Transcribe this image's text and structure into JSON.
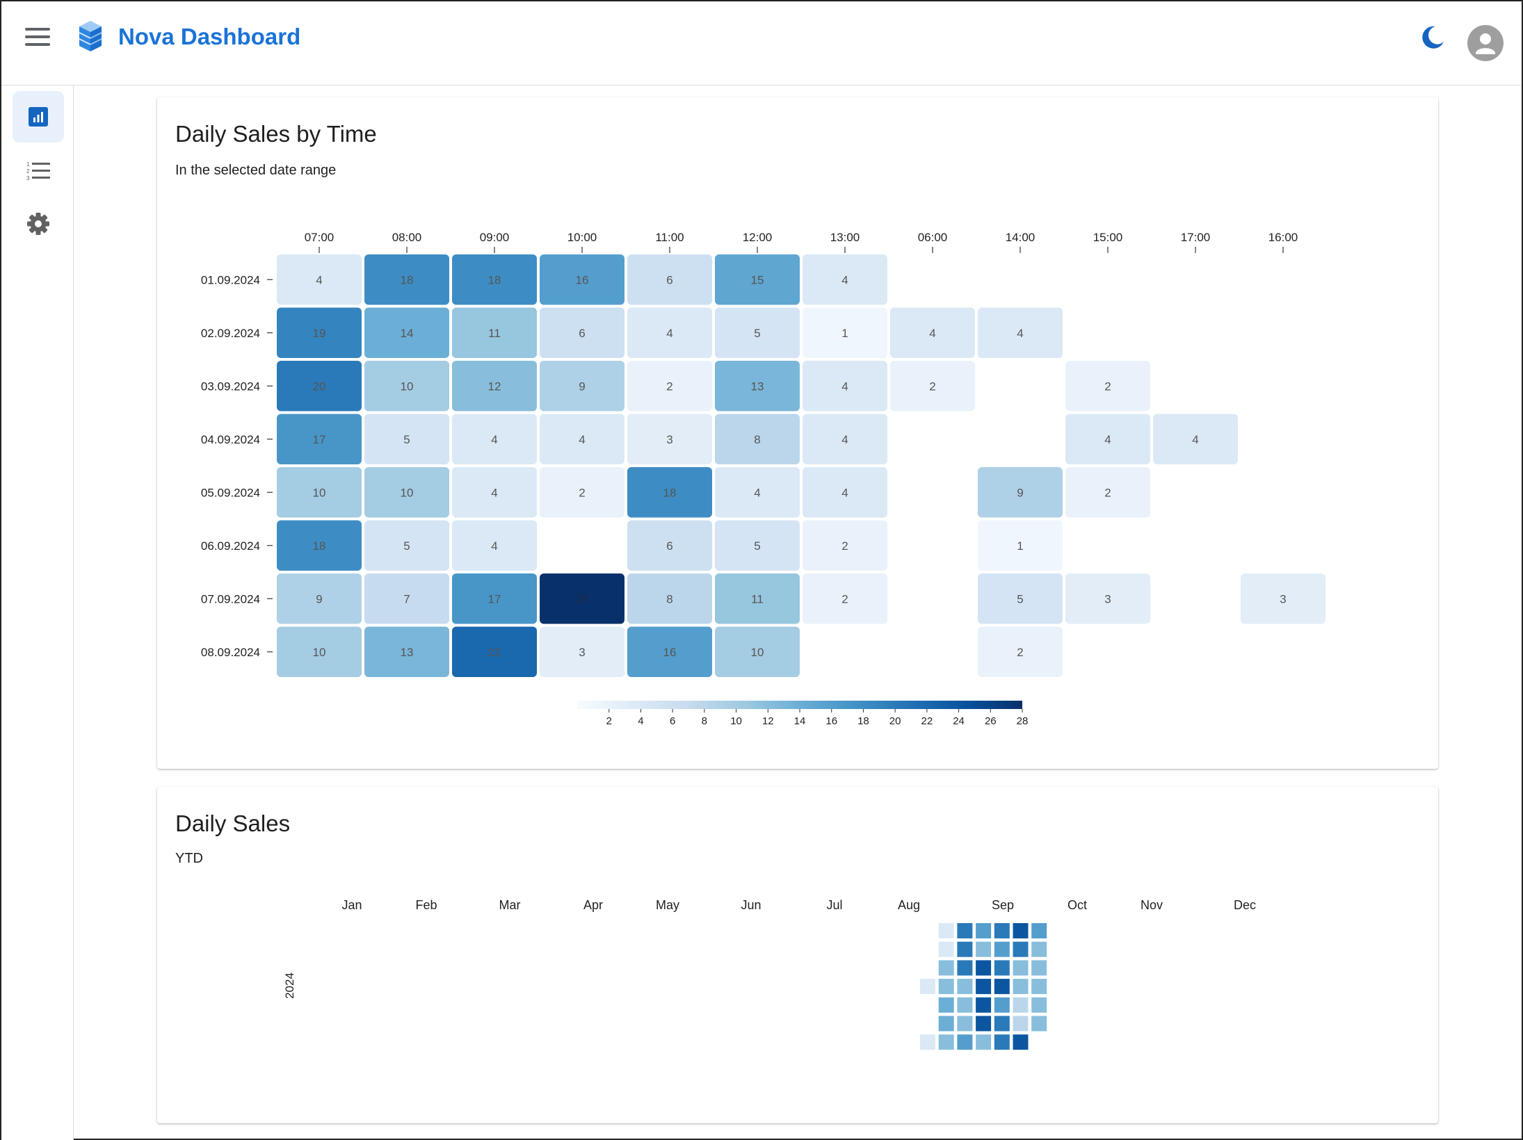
{
  "app": {
    "title": "Nova Dashboard"
  },
  "icons": {
    "menu": "menu-icon",
    "logo": "cube-stack-icon",
    "theme": "moon-icon",
    "account": "account-icon"
  },
  "colors": {
    "accent": "#1a73d6",
    "scale_low": "#f7fbff",
    "scale_high": "#08306b"
  },
  "sidebar": {
    "items": [
      {
        "name": "analytics",
        "icon": "bar-chart-icon",
        "active": true
      },
      {
        "name": "list",
        "icon": "numbered-list-icon",
        "active": false
      },
      {
        "name": "settings",
        "icon": "gear-icon",
        "active": false
      }
    ]
  },
  "heatmap_card": {
    "title": "Daily Sales by Time",
    "subtitle": "In the selected date range"
  },
  "calendar_card": {
    "title": "Daily Sales",
    "subtitle": "YTD"
  },
  "chart_data": [
    {
      "type": "heatmap",
      "x": [
        "07:00",
        "08:00",
        "09:00",
        "10:00",
        "11:00",
        "12:00",
        "13:00",
        "06:00",
        "14:00",
        "15:00",
        "17:00",
        "16:00"
      ],
      "y": [
        "01.09.2024",
        "02.09.2024",
        "03.09.2024",
        "04.09.2024",
        "05.09.2024",
        "06.09.2024",
        "07.09.2024",
        "08.09.2024"
      ],
      "values": [
        [
          4,
          18,
          18,
          16,
          6,
          15,
          4,
          null,
          null,
          null,
          null,
          null
        ],
        [
          19,
          14,
          11,
          6,
          4,
          5,
          1,
          4,
          4,
          null,
          null,
          null
        ],
        [
          20,
          10,
          12,
          9,
          2,
          13,
          4,
          2,
          null,
          2,
          null,
          null
        ],
        [
          17,
          5,
          4,
          4,
          3,
          8,
          4,
          null,
          null,
          4,
          4,
          null
        ],
        [
          10,
          10,
          4,
          2,
          18,
          4,
          4,
          null,
          9,
          2,
          null,
          null
        ],
        [
          18,
          5,
          4,
          null,
          6,
          5,
          2,
          null,
          1,
          null,
          null,
          null
        ],
        [
          9,
          7,
          17,
          28,
          8,
          11,
          2,
          null,
          5,
          3,
          null,
          3
        ],
        [
          10,
          13,
          22,
          3,
          16,
          10,
          null,
          null,
          2,
          null,
          null,
          null
        ]
      ],
      "colorscale": {
        "min": 0,
        "max": 28,
        "ticks": [
          2,
          4,
          6,
          8,
          10,
          12,
          14,
          16,
          18,
          20,
          22,
          24,
          26,
          28
        ]
      }
    },
    {
      "type": "heatmap",
      "months": [
        "Jan",
        "Feb",
        "Mar",
        "Apr",
        "May",
        "Jun",
        "Jul",
        "Aug",
        "Sep",
        "Oct",
        "Nov",
        "Dec"
      ],
      "year": "2024",
      "weeks": [
        {
          "start": "2024-08-26",
          "levels": [
            null,
            null,
            null,
            4,
            null,
            null,
            4
          ]
        },
        {
          "start": "2024-09-02",
          "levels": [
            4,
            4,
            12,
            12,
            14,
            14,
            12
          ]
        },
        {
          "start": "2024-09-09",
          "levels": [
            20,
            20,
            20,
            12,
            12,
            12,
            16
          ]
        },
        {
          "start": "2024-09-16",
          "levels": [
            16,
            12,
            24,
            24,
            24,
            24,
            12
          ]
        },
        {
          "start": "2024-09-23",
          "levels": [
            20,
            16,
            20,
            24,
            16,
            20,
            20
          ]
        },
        {
          "start": "2024-09-30",
          "levels": [
            24,
            20,
            12,
            12,
            8,
            8,
            24
          ]
        },
        {
          "start": "2024-10-07",
          "levels": [
            16,
            12,
            12,
            12,
            12,
            12,
            null
          ]
        }
      ]
    }
  ]
}
